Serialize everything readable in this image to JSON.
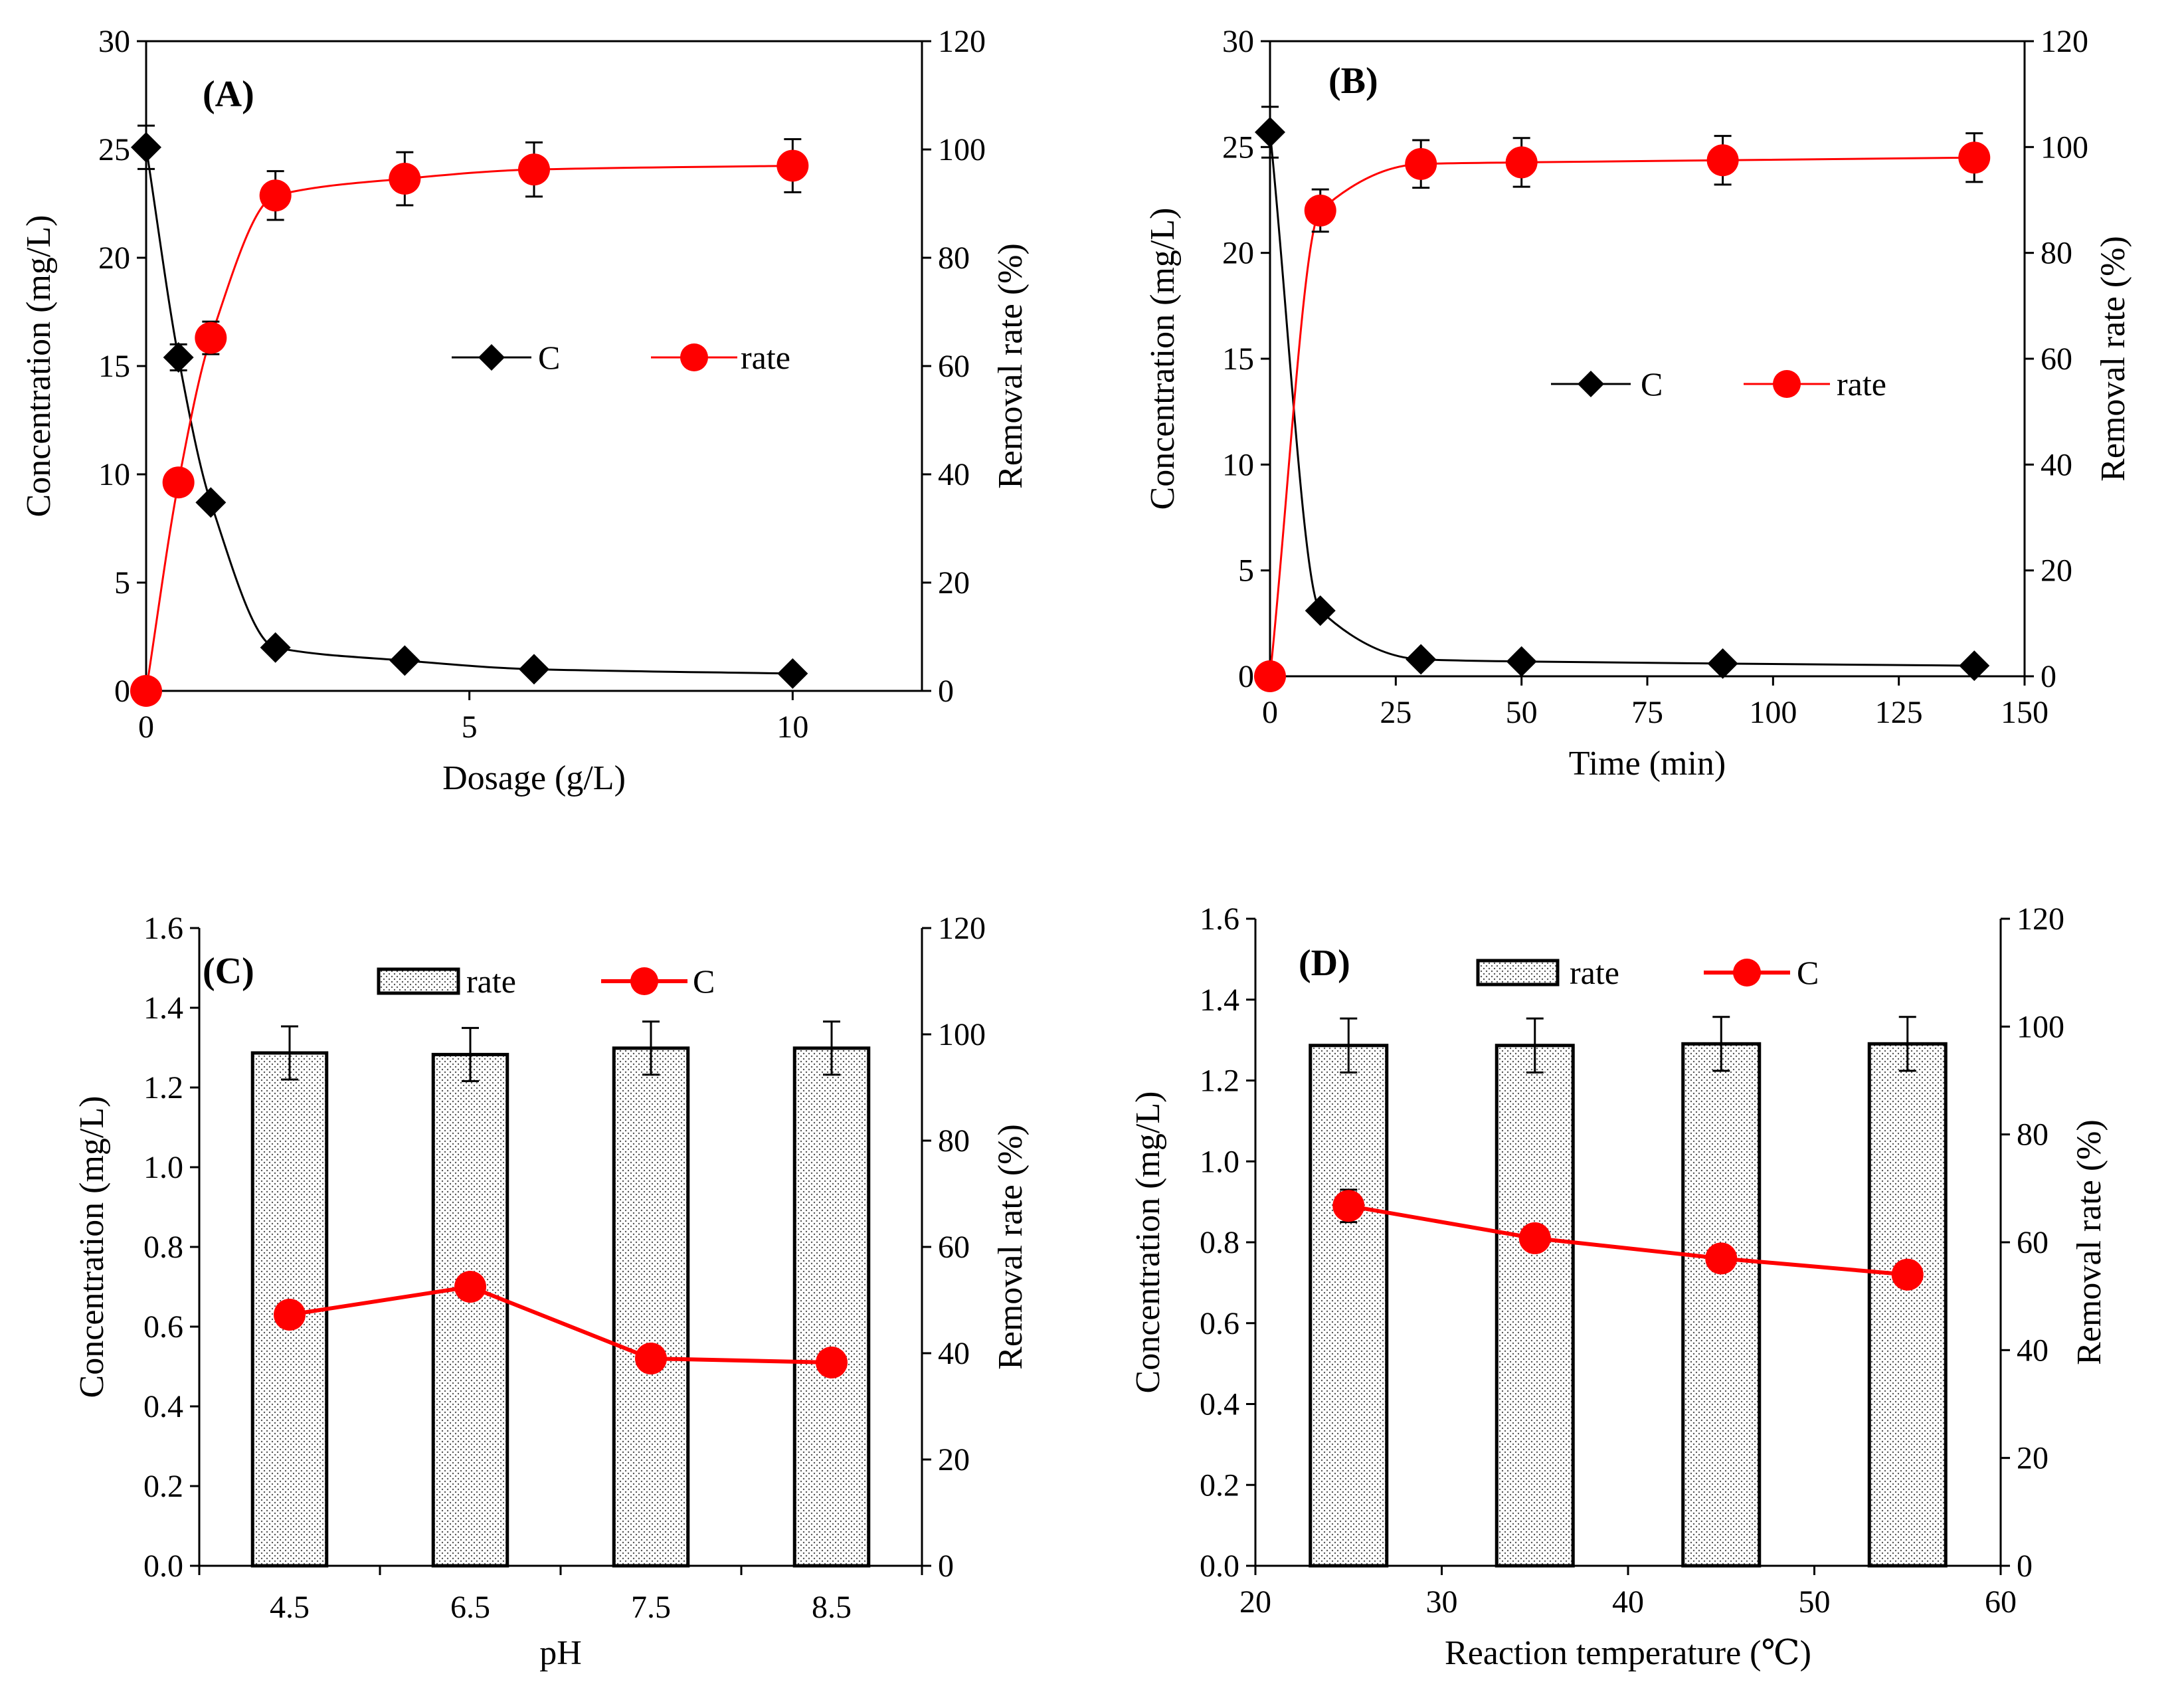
{
  "colors": {
    "series_c_black": "#000000",
    "series_rate_red": "#ff0000",
    "bar_fill": "#ffffff"
  },
  "chart_data": [
    {
      "id": "A",
      "type": "line",
      "panel_label": "(A)",
      "xlabel": "Dosage (g/L)",
      "ylabel": "Concentration (mg/L)",
      "y2label": "Removal rate (%)",
      "xlim": [
        0,
        12
      ],
      "ylim": [
        0,
        30
      ],
      "y2lim": [
        0,
        120
      ],
      "xticks": [
        0,
        5,
        10
      ],
      "xtick_labels": [
        "0",
        "5",
        "10"
      ],
      "yticks": [
        0,
        5,
        10,
        15,
        20,
        25,
        30
      ],
      "ytick_labels": [
        "0",
        "5",
        "10",
        "15",
        "20",
        "25",
        "30"
      ],
      "y2ticks": [
        0,
        20,
        40,
        60,
        80,
        100,
        120
      ],
      "y2tick_labels": [
        "0",
        "20",
        "40",
        "60",
        "80",
        "100",
        "120"
      ],
      "series": [
        {
          "name": "C",
          "axis": "left",
          "marker": "diamond",
          "color": "#000000",
          "x": [
            0,
            0.5,
            1,
            2,
            4,
            6,
            10
          ],
          "values": [
            25.1,
            15.4,
            8.7,
            2.0,
            1.4,
            1.0,
            0.8
          ],
          "errors": [
            1.0,
            0.6,
            0,
            0,
            0,
            0,
            0
          ]
        },
        {
          "name": "rate",
          "axis": "right",
          "marker": "circle",
          "color": "#ff0000",
          "x": [
            0,
            0.5,
            1,
            2,
            4,
            6,
            10
          ],
          "values": [
            0,
            38.5,
            65.2,
            91.5,
            94.6,
            96.3,
            97.0
          ],
          "errors": [
            0,
            0,
            3.0,
            4.5,
            4.9,
            5.0,
            4.9
          ]
        }
      ],
      "legend": [
        "C",
        "rate"
      ]
    },
    {
      "id": "B",
      "type": "line",
      "panel_label": "(B)",
      "xlabel": "Time (min)",
      "ylabel": "Concentration (mg/L)",
      "y2label": "Removal rate (%)",
      "xlim": [
        0,
        150
      ],
      "ylim": [
        0,
        30
      ],
      "y2lim": [
        0,
        120
      ],
      "xticks": [
        0,
        25,
        50,
        75,
        100,
        125,
        150
      ],
      "xtick_labels": [
        "0",
        "25",
        "50",
        "75",
        "100",
        "125",
        "150"
      ],
      "yticks": [
        0,
        5,
        10,
        15,
        20,
        25,
        30
      ],
      "ytick_labels": [
        "0",
        "5",
        "10",
        "15",
        "20",
        "25",
        "30"
      ],
      "y2ticks": [
        0,
        20,
        40,
        60,
        80,
        100,
        120
      ],
      "y2tick_labels": [
        "0",
        "20",
        "40",
        "60",
        "80",
        "100",
        "120"
      ],
      "series": [
        {
          "name": "C",
          "axis": "left",
          "marker": "diamond",
          "color": "#000000",
          "x": [
            0,
            10,
            30,
            50,
            90,
            140
          ],
          "values": [
            25.7,
            3.1,
            0.8,
            0.7,
            0.6,
            0.5
          ],
          "errors": [
            1.2,
            0,
            0,
            0,
            0,
            0
          ]
        },
        {
          "name": "rate",
          "axis": "right",
          "marker": "circle",
          "color": "#ff0000",
          "x": [
            0,
            10,
            30,
            50,
            90,
            140
          ],
          "values": [
            0,
            88.0,
            96.8,
            97.1,
            97.5,
            98.0
          ],
          "errors": [
            0,
            4.0,
            4.5,
            4.6,
            4.6,
            4.6
          ]
        }
      ],
      "legend": [
        "C",
        "rate"
      ]
    },
    {
      "id": "C",
      "type": "bar",
      "panel_label": "(C)",
      "xlabel": "pH",
      "ylabel": "Concentration (mg/L)",
      "y2label": "Removal rate (%)",
      "categories": [
        "4.5",
        "6.5",
        "7.5",
        "8.5"
      ],
      "ylim": [
        0,
        1.6
      ],
      "y2lim": [
        0,
        120
      ],
      "yticks": [
        0,
        0.2,
        0.4,
        0.6,
        0.8,
        1.0,
        1.2,
        1.4,
        1.6
      ],
      "ytick_labels": [
        "0.0",
        "0.2",
        "0.4",
        "0.6",
        "0.8",
        "1.0",
        "1.2",
        "1.4",
        "1.6"
      ],
      "y2ticks": [
        0,
        20,
        40,
        60,
        80,
        100,
        120
      ],
      "y2tick_labels": [
        "0",
        "20",
        "40",
        "60",
        "80",
        "100",
        "120"
      ],
      "series": [
        {
          "name": "rate",
          "axis": "right",
          "kind": "bar",
          "values": [
            96.5,
            96.2,
            97.4,
            97.4
          ],
          "errors": [
            5.0,
            5.0,
            5.0,
            5.0
          ]
        },
        {
          "name": "C",
          "axis": "left",
          "kind": "line",
          "marker": "circle",
          "color": "#ff0000",
          "values": [
            0.63,
            0.7,
            0.52,
            0.51
          ]
        }
      ],
      "legend": [
        "rate",
        "C"
      ]
    },
    {
      "id": "D",
      "type": "bar",
      "panel_label": "(D)",
      "xlabel": "Reaction temperature (℃)",
      "ylabel": "Concentration (mg/L)",
      "y2label": "Removal rate (%)",
      "xlim": [
        20,
        60
      ],
      "xticks": [
        20,
        30,
        40,
        50,
        60
      ],
      "xtick_labels": [
        "20",
        "30",
        "40",
        "50",
        "60"
      ],
      "ylim": [
        0,
        1.6
      ],
      "y2lim": [
        0,
        120
      ],
      "yticks": [
        0,
        0.2,
        0.4,
        0.6,
        0.8,
        1.0,
        1.2,
        1.4,
        1.6
      ],
      "ytick_labels": [
        "0.0",
        "0.2",
        "0.4",
        "0.6",
        "0.8",
        "1.0",
        "1.2",
        "1.4",
        "1.6"
      ],
      "y2ticks": [
        0,
        20,
        40,
        60,
        80,
        100,
        120
      ],
      "y2tick_labels": [
        "0",
        "20",
        "40",
        "60",
        "80",
        "100",
        "120"
      ],
      "series": [
        {
          "name": "rate",
          "axis": "right",
          "kind": "bar",
          "x": [
            25,
            35,
            45,
            55
          ],
          "values": [
            96.5,
            96.5,
            96.8,
            96.8
          ],
          "errors": [
            5.0,
            5.0,
            5.0,
            5.0
          ]
        },
        {
          "name": "C",
          "axis": "left",
          "kind": "line",
          "marker": "circle",
          "color": "#ff0000",
          "x": [
            25,
            35,
            45,
            55
          ],
          "values": [
            0.89,
            0.81,
            0.76,
            0.72
          ],
          "errors": [
            0.04,
            0.03,
            0.03,
            0.02
          ]
        }
      ],
      "legend": [
        "rate",
        "C"
      ]
    }
  ]
}
